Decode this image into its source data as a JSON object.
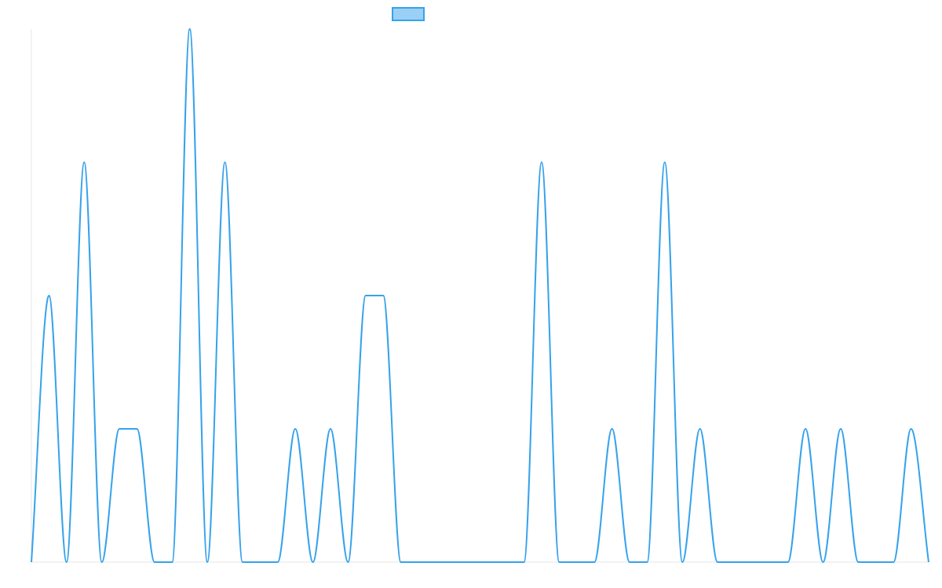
{
  "chart_data": {
    "type": "line",
    "title": "",
    "xlabel": "",
    "ylabel": "",
    "x": [
      0,
      1,
      2,
      3,
      4,
      5,
      6,
      7,
      8,
      9,
      10,
      11,
      12,
      13,
      14,
      15,
      16,
      17,
      18,
      19,
      20,
      21,
      22,
      23,
      24,
      25,
      26,
      27,
      28,
      29,
      30,
      31,
      32,
      33,
      34,
      35,
      36,
      37,
      38,
      39,
      40,
      41,
      42,
      43,
      44,
      45,
      46,
      47,
      48,
      49,
      50,
      51
    ],
    "ylim": [
      0,
      4
    ],
    "grid": false,
    "legend": {
      "position": "top-center",
      "show_label": false
    },
    "series": [
      {
        "name": "",
        "color": "#36a2eb",
        "fill": "#9ad0f5",
        "values": [
          0,
          2,
          0,
          3,
          0,
          1,
          1,
          0,
          0,
          4,
          0,
          3,
          0,
          0,
          0,
          1,
          0,
          1,
          0,
          2,
          2,
          0,
          0,
          0,
          0,
          0,
          0,
          0,
          0,
          3,
          0,
          0,
          0,
          1,
          0,
          0,
          3,
          0,
          1,
          0,
          0,
          0,
          0,
          0,
          1,
          0,
          1,
          0,
          0,
          0,
          1,
          0
        ]
      }
    ]
  }
}
